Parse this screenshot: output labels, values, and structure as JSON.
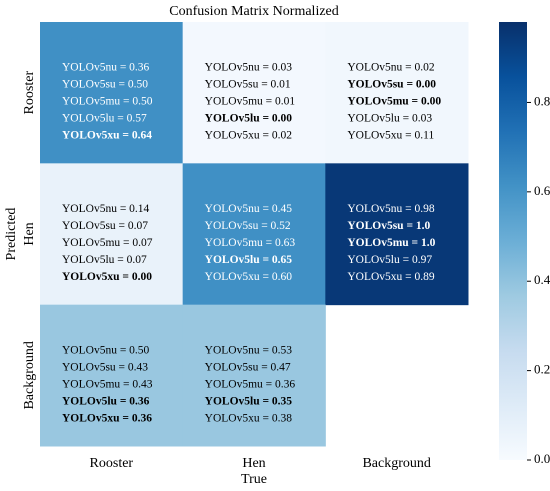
{
  "chart_data": {
    "type": "heatmap",
    "title": "Confusion Matrix Normalized",
    "x_label": "True",
    "y_label": "Predicted",
    "x_categories": [
      "Rooster",
      "Hen",
      "Background"
    ],
    "y_categories": [
      "Rooster",
      "Hen",
      "Background"
    ],
    "values": [
      [
        0.62,
        0.02,
        0.03
      ],
      [
        0.07,
        0.62,
        0.95
      ],
      [
        0.38,
        0.38,
        null
      ]
    ],
    "cell_text": [
      [
        [
          {
            "text": "YOLOv5nu = 0.36",
            "bold": false
          },
          {
            "text": "YOLOv5su = 0.50",
            "bold": false
          },
          {
            "text": "YOLOv5mu = 0.50",
            "bold": false
          },
          {
            "text": "YOLOv5lu = 0.57",
            "bold": false
          },
          {
            "text": "YOLOv5xu = 0.64",
            "bold": true
          }
        ],
        [
          {
            "text": "YOLOv5nu = 0.03",
            "bold": false
          },
          {
            "text": "YOLOv5su = 0.01",
            "bold": false
          },
          {
            "text": "YOLOv5mu = 0.01",
            "bold": false
          },
          {
            "text": "YOLOv5lu = 0.00",
            "bold": true
          },
          {
            "text": "YOLOv5xu = 0.02",
            "bold": false
          }
        ],
        [
          {
            "text": "YOLOv5nu = 0.02",
            "bold": false
          },
          {
            "text": "YOLOv5su = 0.00",
            "bold": true
          },
          {
            "text": "YOLOv5mu = 0.00",
            "bold": true
          },
          {
            "text": "YOLOv5lu = 0.03",
            "bold": false
          },
          {
            "text": "YOLOv5xu = 0.11",
            "bold": false
          }
        ]
      ],
      [
        [
          {
            "text": "YOLOv5nu = 0.14",
            "bold": false
          },
          {
            "text": "YOLOv5su = 0.07",
            "bold": false
          },
          {
            "text": "YOLOv5mu = 0.07",
            "bold": false
          },
          {
            "text": "YOLOv5lu = 0.07",
            "bold": false
          },
          {
            "text": "YOLOv5xu = 0.00",
            "bold": true
          }
        ],
        [
          {
            "text": "YOLOv5nu = 0.45",
            "bold": false
          },
          {
            "text": "YOLOv5su = 0.52",
            "bold": false
          },
          {
            "text": "YOLOv5mu = 0.63",
            "bold": false
          },
          {
            "text": "YOLOv5lu = 0.65",
            "bold": true
          },
          {
            "text": "YOLOv5xu = 0.60",
            "bold": false
          }
        ],
        [
          {
            "text": "YOLOv5nu = 0.98",
            "bold": false
          },
          {
            "text": "YOLOv5su = 1.0",
            "bold": true
          },
          {
            "text": "YOLOv5mu = 1.0",
            "bold": true
          },
          {
            "text": "YOLOv5lu = 0.97",
            "bold": false
          },
          {
            "text": "YOLOv5xu = 0.89",
            "bold": false
          }
        ]
      ],
      [
        [
          {
            "text": "YOLOv5nu = 0.50",
            "bold": false
          },
          {
            "text": "YOLOv5su = 0.43",
            "bold": false
          },
          {
            "text": "YOLOv5mu = 0.43",
            "bold": false
          },
          {
            "text": "YOLOv5lu = 0.36",
            "bold": true
          },
          {
            "text": "YOLOv5xu = 0.36",
            "bold": true
          }
        ],
        [
          {
            "text": "YOLOv5nu = 0.53",
            "bold": false
          },
          {
            "text": "YOLOv5su = 0.47",
            "bold": false
          },
          {
            "text": "YOLOv5mu = 0.36",
            "bold": false
          },
          {
            "text": "YOLOv5lu = 0.35",
            "bold": true
          },
          {
            "text": "YOLOv5xu = 0.38",
            "bold": false
          }
        ],
        []
      ]
    ],
    "clim": [
      0,
      0.98
    ],
    "cticks": [
      {
        "value": 0,
        "label": "0.0"
      },
      0.2,
      0.4,
      0.6,
      0.8
    ],
    "colormap": "Blues"
  }
}
